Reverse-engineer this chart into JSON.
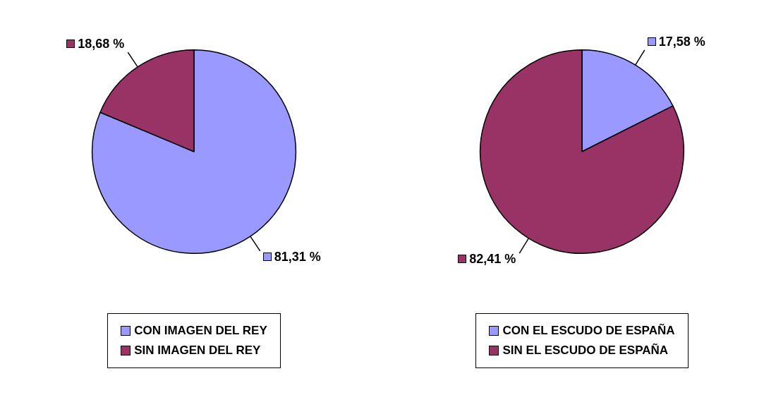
{
  "chart_data": [
    {
      "type": "pie",
      "categories": [
        "CON IMAGEN DEL REY",
        "SIN IMAGEN DEL REY"
      ],
      "values": [
        81.31,
        18.68
      ],
      "colors": [
        "#9999ff",
        "#993366"
      ],
      "value_labels": [
        "81,31 %",
        "18,68 %"
      ],
      "legend": "bottom"
    },
    {
      "type": "pie",
      "categories": [
        "CON EL ESCUDO DE ESPAÑA",
        "SIN EL ESCUDO DE ESPAÑA"
      ],
      "values": [
        17.58,
        82.41
      ],
      "colors": [
        "#9999ff",
        "#993366"
      ],
      "value_labels": [
        "17,58 %",
        "82,41 %"
      ],
      "legend": "bottom"
    }
  ]
}
